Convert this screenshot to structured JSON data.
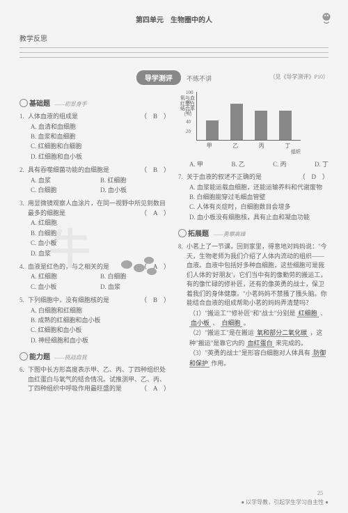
{
  "header": {
    "unit": "第四单元　生物圈中的人",
    "reflect": "教学反思"
  },
  "banner": {
    "title": "导学测评",
    "side": "不练不讲",
    "ref": "（见《导学测评》P10）"
  },
  "sections": {
    "basic": {
      "title": "基础题",
      "sub": "——初显身手"
    },
    "ability": {
      "title": "能力题",
      "sub": "——挑战自我"
    },
    "extend": {
      "title": "拓展题",
      "sub": "——勇攀高峰"
    }
  },
  "q1": {
    "num": "1.",
    "stem": "人体血液的组成是",
    "ans": "（　B　）",
    "A": "A. 血清和血细胞",
    "B": "B. 血浆和血细胞",
    "C": "C. 红细胞和白细胞",
    "D": "D. 红细胞和血小板"
  },
  "q2": {
    "num": "2.",
    "stem": "具有吞噬细菌功能的血细胞是",
    "ans": "（　B　）",
    "A": "A. 血浆",
    "B": "B. 红细胞",
    "C": "C. 白细胞",
    "D": "D. 血小板"
  },
  "q3": {
    "num": "3.",
    "stem": "用显微镜观察人血涂片，在同一视野中所见到数目最多的细胞是",
    "ans": "（　A　）",
    "A": "A. 红细胞",
    "B": "B. 白细胞",
    "C": "C. 血小板",
    "D": "D. 血浆"
  },
  "q4": {
    "num": "4.",
    "stem": "血液是红色的，与之相关的是",
    "ans": "（　A　）",
    "A": "A. 红细胞",
    "B": "B. 白细胞",
    "C": "C. 血小板",
    "D": "D. 血浆"
  },
  "q5": {
    "num": "5.",
    "stem": "下列细胞中，没有细胞核的是",
    "ans": "（　B　）",
    "A": "A. 白细胞和红细胞",
    "B": "B. 成熟的红细胞和血小板",
    "C": "C. 红细胞和血小板",
    "D": "D. 神经细胞和血小板"
  },
  "q6": {
    "num": "6.",
    "stem": "下图中长方形高度表示甲、乙、丙、丁四种组织处血红蛋白与氧气的结合情况。试推测甲、乙、丙、丁四种组织中呼吸作用最旺盛的是",
    "ans": "（　A　）"
  },
  "chart": {
    "ylabel": "氧与血红蛋白结合率（%）",
    "ylim": [
      0,
      100
    ],
    "yticks": [
      "100",
      "80",
      "60",
      "40",
      "20"
    ],
    "categories": [
      "甲",
      "乙",
      "丙",
      "丁"
    ],
    "values": [
      40,
      75,
      60,
      60
    ],
    "xaxis": "组织",
    "opts": {
      "A": "A. 甲",
      "B": "B. 乙",
      "C": "C. 丙",
      "D": "D. 丁"
    }
  },
  "q7": {
    "num": "7.",
    "stem": "关于血液的叙述不正确的是",
    "ans": "（　D　）",
    "A": "A. 血浆能运载血细胞，还能运输养料和代谢废物",
    "B": "B. 白细胞能穿过毛细血管壁",
    "C": "C. 人体有炎症时，白细胞数目会增多",
    "D": "D. 血小板没有细胞核，具有止血和凝血功能"
  },
  "q8": {
    "num": "8.",
    "stem_a": "小茗上了一节课，回到家里，得意地对妈妈说：\"今天，生物老师为我们介绍了人体内流动的组织——血液。血液中包括好多种血细胞，这些细胞可是我们人体的'好朋友'，它们当中有的像勤劳的搬运工，有的像忙碌的修补匠，还有的像英勇的战士，保卫着我们的身体健康。\"小茗妈妈不禁搔了搔头脑。你能结合血液的组成帮助小茗的妈妈弄清楚吗？",
    "p1a": "（1）\"搬运工\"\"修补匠\"和\"战士\"分别是",
    "p1b": "红细胞",
    "p1c": "、",
    "p1d": "血小板",
    "p1e": "、",
    "p1f": "白细胞",
    "p1g": "。",
    "p2a": "（2）\"搬运工\"是在搬运",
    "p2b": "氧和部分二氧化碳",
    "p2c": "，这种\"搬运\"是靠它内的",
    "p2d": "血红蛋白",
    "p2e": "来完成的。",
    "p3a": "（3）\"英勇的战士\"是形容白细胞对人体具有",
    "p3b": "防御和保护",
    "p3c": "作用。"
  },
  "footer": {
    "text": "● 以学导教，引起学生学习自主性 ●",
    "page": "25"
  }
}
